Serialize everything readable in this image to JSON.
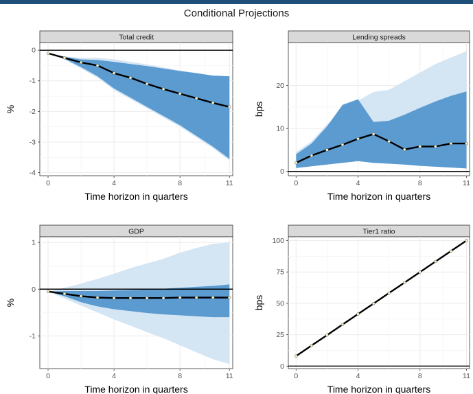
{
  "figure": {
    "title": "Conditional Projections"
  },
  "colors": {
    "outer_band": "#d4e5f4",
    "inner_band": "#5b9bd0",
    "line": "#000000",
    "strip": "#d9d9d9",
    "grid": "#ebebeb",
    "point": "#f2f2c8"
  },
  "chart_data": [
    {
      "type": "line",
      "title": "Total credit",
      "xlabel": "Time horizon in quarters",
      "ylabel": "%",
      "xlim": [
        -0.5,
        11.2
      ],
      "ylim": [
        -4.1,
        0.25
      ],
      "xticks": [
        0,
        4,
        8,
        11
      ],
      "yticks": [
        0,
        -1,
        -2,
        -3,
        -4
      ],
      "x": [
        0,
        1,
        2,
        3,
        4,
        5,
        6,
        7,
        8,
        9,
        10,
        11
      ],
      "series": [
        {
          "role": "median",
          "values": [
            -0.1,
            -0.25,
            -0.4,
            -0.5,
            -0.75,
            -0.9,
            -1.1,
            -1.27,
            -1.42,
            -1.57,
            -1.72,
            -1.85
          ]
        },
        {
          "role": "band_outer",
          "lower": [
            -0.1,
            -0.3,
            -0.6,
            -0.9,
            -1.3,
            -1.6,
            -1.9,
            -2.2,
            -2.5,
            -2.85,
            -3.2,
            -3.6
          ],
          "upper": [
            -0.1,
            -0.2,
            -0.25,
            -0.25,
            -0.3,
            -0.38,
            -0.46,
            -0.56,
            -0.66,
            -0.74,
            -0.82,
            -0.85
          ]
        },
        {
          "role": "band_inner",
          "lower": [
            -0.1,
            -0.28,
            -0.55,
            -0.85,
            -1.25,
            -1.55,
            -1.85,
            -2.15,
            -2.45,
            -2.8,
            -3.15,
            -3.55
          ],
          "upper": [
            -0.1,
            -0.22,
            -0.3,
            -0.32,
            -0.38,
            -0.45,
            -0.52,
            -0.6,
            -0.68,
            -0.75,
            -0.83,
            -0.85
          ]
        }
      ],
      "hline": 0
    },
    {
      "type": "line",
      "title": "Lending spreads",
      "xlabel": "Time horizon in quarters",
      "ylabel": "bps",
      "xlim": [
        -0.5,
        11.2
      ],
      "ylim": [
        -1,
        30
      ],
      "xticks": [
        0,
        4,
        8,
        11
      ],
      "yticks": [
        0,
        10,
        20
      ],
      "x": [
        0,
        1,
        2,
        3,
        4,
        5,
        6,
        7,
        8,
        9,
        10,
        11
      ],
      "series": [
        {
          "role": "median",
          "values": [
            2,
            3.7,
            5,
            6.2,
            7.6,
            8.7,
            7,
            5.1,
            5.8,
            5.8,
            6.5,
            6.5
          ]
        },
        {
          "role": "band_outer",
          "lower": [
            0.8,
            1.2,
            1.6,
            2,
            2.4,
            2,
            1.8,
            1.6,
            1.3,
            1.1,
            0.9,
            0.7
          ],
          "upper": [
            4.5,
            7,
            11,
            13.5,
            16.5,
            18.5,
            19,
            21,
            23,
            25,
            26.5,
            28
          ]
        },
        {
          "role": "band_inner",
          "lower": [
            0.8,
            1.2,
            1.6,
            2,
            2.4,
            2,
            1.8,
            1.6,
            1.3,
            1.1,
            0.9,
            0.7
          ],
          "upper": [
            4,
            6.5,
            10.5,
            15.5,
            16.8,
            11.5,
            11.8,
            13.2,
            14.8,
            16.3,
            17.6,
            18.6
          ]
        }
      ],
      "hline": 0
    },
    {
      "type": "line",
      "title": "GDP",
      "xlabel": "Time horizon in quarters",
      "ylabel": "%",
      "xlim": [
        -0.5,
        11.2
      ],
      "ylim": [
        -1.7,
        1.12
      ],
      "xticks": [
        0,
        4,
        8,
        11
      ],
      "yticks": [
        1,
        0,
        -1
      ],
      "x": [
        0,
        1,
        2,
        3,
        4,
        5,
        6,
        7,
        8,
        9,
        10,
        11
      ],
      "series": [
        {
          "role": "median",
          "values": [
            -0.05,
            -0.1,
            -0.15,
            -0.18,
            -0.19,
            -0.19,
            -0.19,
            -0.19,
            -0.18,
            -0.18,
            -0.18,
            -0.18
          ]
        },
        {
          "role": "band_outer",
          "lower": [
            -0.05,
            -0.2,
            -0.35,
            -0.5,
            -0.65,
            -0.78,
            -0.92,
            -1.05,
            -1.2,
            -1.35,
            -1.5,
            -1.6
          ],
          "upper": [
            -0.05,
            0.03,
            0.12,
            0.22,
            0.33,
            0.45,
            0.55,
            0.65,
            0.78,
            0.88,
            0.97,
            1.0
          ]
        },
        {
          "role": "band_inner",
          "lower": [
            -0.05,
            -0.15,
            -0.28,
            -0.37,
            -0.43,
            -0.47,
            -0.51,
            -0.54,
            -0.56,
            -0.58,
            -0.6,
            -0.6
          ],
          "upper": [
            -0.05,
            -0.04,
            -0.04,
            -0.04,
            -0.03,
            -0.02,
            -0.01,
            0.01,
            0.03,
            0.05,
            0.07,
            0.1
          ]
        }
      ],
      "hline": 0
    },
    {
      "type": "line",
      "title": "Tier1 ratio",
      "xlabel": "Time horizon in quarters",
      "ylabel": "bps",
      "xlim": [
        -0.5,
        11.2
      ],
      "ylim": [
        -2,
        103
      ],
      "xticks": [
        0,
        4,
        8,
        11
      ],
      "yticks": [
        0,
        25,
        50,
        75,
        100
      ],
      "x": [
        0,
        1,
        2,
        3,
        4,
        5,
        6,
        7,
        8,
        9,
        10,
        11
      ],
      "series": [
        {
          "role": "median",
          "values": [
            8,
            16.4,
            24.7,
            33.1,
            41.5,
            49.8,
            58.2,
            66.5,
            74.9,
            83.3,
            91.6,
            100
          ]
        }
      ],
      "hline": 0
    }
  ]
}
